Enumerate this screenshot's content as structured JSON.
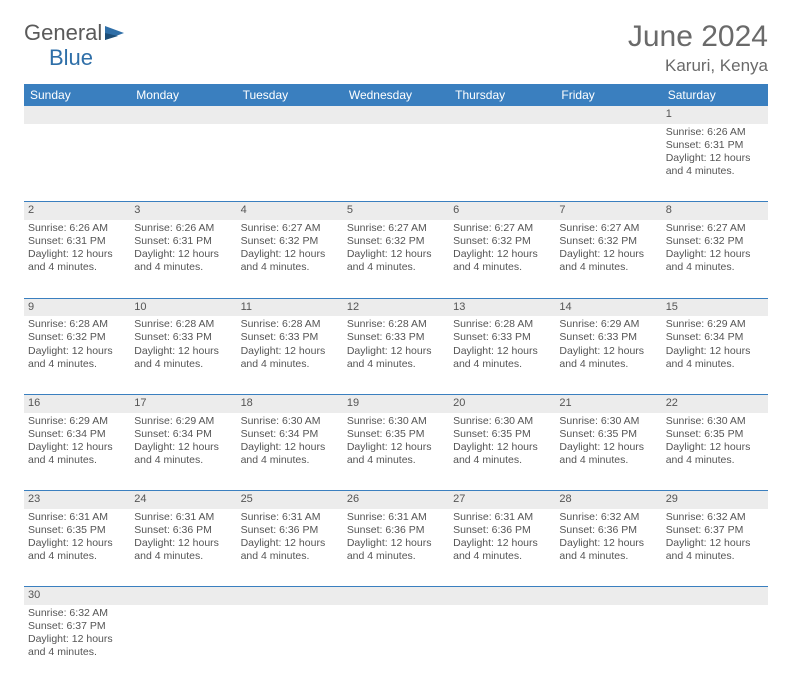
{
  "logo": {
    "text1": "General",
    "text2": "Blue"
  },
  "title": "June 2024",
  "location": "Karuri, Kenya",
  "header_bg": "#3a7fbf",
  "header_fg": "#ffffff",
  "daynum_bg": "#ececec",
  "dayHeaders": [
    "Sunday",
    "Monday",
    "Tuesday",
    "Wednesday",
    "Thursday",
    "Friday",
    "Saturday"
  ],
  "weeks": [
    [
      null,
      null,
      null,
      null,
      null,
      null,
      {
        "n": "1",
        "sr": "Sunrise: 6:26 AM",
        "ss": "Sunset: 6:31 PM",
        "dl": "Daylight: 12 hours and 4 minutes."
      }
    ],
    [
      {
        "n": "2",
        "sr": "Sunrise: 6:26 AM",
        "ss": "Sunset: 6:31 PM",
        "dl": "Daylight: 12 hours and 4 minutes."
      },
      {
        "n": "3",
        "sr": "Sunrise: 6:26 AM",
        "ss": "Sunset: 6:31 PM",
        "dl": "Daylight: 12 hours and 4 minutes."
      },
      {
        "n": "4",
        "sr": "Sunrise: 6:27 AM",
        "ss": "Sunset: 6:32 PM",
        "dl": "Daylight: 12 hours and 4 minutes."
      },
      {
        "n": "5",
        "sr": "Sunrise: 6:27 AM",
        "ss": "Sunset: 6:32 PM",
        "dl": "Daylight: 12 hours and 4 minutes."
      },
      {
        "n": "6",
        "sr": "Sunrise: 6:27 AM",
        "ss": "Sunset: 6:32 PM",
        "dl": "Daylight: 12 hours and 4 minutes."
      },
      {
        "n": "7",
        "sr": "Sunrise: 6:27 AM",
        "ss": "Sunset: 6:32 PM",
        "dl": "Daylight: 12 hours and 4 minutes."
      },
      {
        "n": "8",
        "sr": "Sunrise: 6:27 AM",
        "ss": "Sunset: 6:32 PM",
        "dl": "Daylight: 12 hours and 4 minutes."
      }
    ],
    [
      {
        "n": "9",
        "sr": "Sunrise: 6:28 AM",
        "ss": "Sunset: 6:32 PM",
        "dl": "Daylight: 12 hours and 4 minutes."
      },
      {
        "n": "10",
        "sr": "Sunrise: 6:28 AM",
        "ss": "Sunset: 6:33 PM",
        "dl": "Daylight: 12 hours and 4 minutes."
      },
      {
        "n": "11",
        "sr": "Sunrise: 6:28 AM",
        "ss": "Sunset: 6:33 PM",
        "dl": "Daylight: 12 hours and 4 minutes."
      },
      {
        "n": "12",
        "sr": "Sunrise: 6:28 AM",
        "ss": "Sunset: 6:33 PM",
        "dl": "Daylight: 12 hours and 4 minutes."
      },
      {
        "n": "13",
        "sr": "Sunrise: 6:28 AM",
        "ss": "Sunset: 6:33 PM",
        "dl": "Daylight: 12 hours and 4 minutes."
      },
      {
        "n": "14",
        "sr": "Sunrise: 6:29 AM",
        "ss": "Sunset: 6:33 PM",
        "dl": "Daylight: 12 hours and 4 minutes."
      },
      {
        "n": "15",
        "sr": "Sunrise: 6:29 AM",
        "ss": "Sunset: 6:34 PM",
        "dl": "Daylight: 12 hours and 4 minutes."
      }
    ],
    [
      {
        "n": "16",
        "sr": "Sunrise: 6:29 AM",
        "ss": "Sunset: 6:34 PM",
        "dl": "Daylight: 12 hours and 4 minutes."
      },
      {
        "n": "17",
        "sr": "Sunrise: 6:29 AM",
        "ss": "Sunset: 6:34 PM",
        "dl": "Daylight: 12 hours and 4 minutes."
      },
      {
        "n": "18",
        "sr": "Sunrise: 6:30 AM",
        "ss": "Sunset: 6:34 PM",
        "dl": "Daylight: 12 hours and 4 minutes."
      },
      {
        "n": "19",
        "sr": "Sunrise: 6:30 AM",
        "ss": "Sunset: 6:35 PM",
        "dl": "Daylight: 12 hours and 4 minutes."
      },
      {
        "n": "20",
        "sr": "Sunrise: 6:30 AM",
        "ss": "Sunset: 6:35 PM",
        "dl": "Daylight: 12 hours and 4 minutes."
      },
      {
        "n": "21",
        "sr": "Sunrise: 6:30 AM",
        "ss": "Sunset: 6:35 PM",
        "dl": "Daylight: 12 hours and 4 minutes."
      },
      {
        "n": "22",
        "sr": "Sunrise: 6:30 AM",
        "ss": "Sunset: 6:35 PM",
        "dl": "Daylight: 12 hours and 4 minutes."
      }
    ],
    [
      {
        "n": "23",
        "sr": "Sunrise: 6:31 AM",
        "ss": "Sunset: 6:35 PM",
        "dl": "Daylight: 12 hours and 4 minutes."
      },
      {
        "n": "24",
        "sr": "Sunrise: 6:31 AM",
        "ss": "Sunset: 6:36 PM",
        "dl": "Daylight: 12 hours and 4 minutes."
      },
      {
        "n": "25",
        "sr": "Sunrise: 6:31 AM",
        "ss": "Sunset: 6:36 PM",
        "dl": "Daylight: 12 hours and 4 minutes."
      },
      {
        "n": "26",
        "sr": "Sunrise: 6:31 AM",
        "ss": "Sunset: 6:36 PM",
        "dl": "Daylight: 12 hours and 4 minutes."
      },
      {
        "n": "27",
        "sr": "Sunrise: 6:31 AM",
        "ss": "Sunset: 6:36 PM",
        "dl": "Daylight: 12 hours and 4 minutes."
      },
      {
        "n": "28",
        "sr": "Sunrise: 6:32 AM",
        "ss": "Sunset: 6:36 PM",
        "dl": "Daylight: 12 hours and 4 minutes."
      },
      {
        "n": "29",
        "sr": "Sunrise: 6:32 AM",
        "ss": "Sunset: 6:37 PM",
        "dl": "Daylight: 12 hours and 4 minutes."
      }
    ],
    [
      {
        "n": "30",
        "sr": "Sunrise: 6:32 AM",
        "ss": "Sunset: 6:37 PM",
        "dl": "Daylight: 12 hours and 4 minutes."
      },
      null,
      null,
      null,
      null,
      null,
      null
    ]
  ]
}
